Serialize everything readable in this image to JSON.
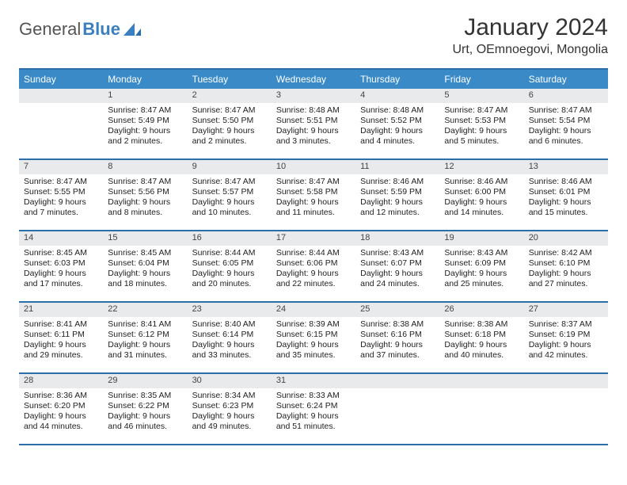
{
  "logo": {
    "part1": "General",
    "part2": "Blue"
  },
  "title": "January 2024",
  "location": "Urt, OEmnoegovi, Mongolia",
  "colors": {
    "header_bg": "#3a8ac7",
    "border": "#2c6fa8",
    "daynum_bg": "#e8eaec",
    "logo_gray": "#555555",
    "logo_blue": "#3a7fbf"
  },
  "weekdays": [
    "Sunday",
    "Monday",
    "Tuesday",
    "Wednesday",
    "Thursday",
    "Friday",
    "Saturday"
  ],
  "weeks": [
    [
      {
        "n": "",
        "sr": "",
        "ss": "",
        "dl": ""
      },
      {
        "n": "1",
        "sr": "Sunrise: 8:47 AM",
        "ss": "Sunset: 5:49 PM",
        "dl": "Daylight: 9 hours and 2 minutes."
      },
      {
        "n": "2",
        "sr": "Sunrise: 8:47 AM",
        "ss": "Sunset: 5:50 PM",
        "dl": "Daylight: 9 hours and 2 minutes."
      },
      {
        "n": "3",
        "sr": "Sunrise: 8:48 AM",
        "ss": "Sunset: 5:51 PM",
        "dl": "Daylight: 9 hours and 3 minutes."
      },
      {
        "n": "4",
        "sr": "Sunrise: 8:48 AM",
        "ss": "Sunset: 5:52 PM",
        "dl": "Daylight: 9 hours and 4 minutes."
      },
      {
        "n": "5",
        "sr": "Sunrise: 8:47 AM",
        "ss": "Sunset: 5:53 PM",
        "dl": "Daylight: 9 hours and 5 minutes."
      },
      {
        "n": "6",
        "sr": "Sunrise: 8:47 AM",
        "ss": "Sunset: 5:54 PM",
        "dl": "Daylight: 9 hours and 6 minutes."
      }
    ],
    [
      {
        "n": "7",
        "sr": "Sunrise: 8:47 AM",
        "ss": "Sunset: 5:55 PM",
        "dl": "Daylight: 9 hours and 7 minutes."
      },
      {
        "n": "8",
        "sr": "Sunrise: 8:47 AM",
        "ss": "Sunset: 5:56 PM",
        "dl": "Daylight: 9 hours and 8 minutes."
      },
      {
        "n": "9",
        "sr": "Sunrise: 8:47 AM",
        "ss": "Sunset: 5:57 PM",
        "dl": "Daylight: 9 hours and 10 minutes."
      },
      {
        "n": "10",
        "sr": "Sunrise: 8:47 AM",
        "ss": "Sunset: 5:58 PM",
        "dl": "Daylight: 9 hours and 11 minutes."
      },
      {
        "n": "11",
        "sr": "Sunrise: 8:46 AM",
        "ss": "Sunset: 5:59 PM",
        "dl": "Daylight: 9 hours and 12 minutes."
      },
      {
        "n": "12",
        "sr": "Sunrise: 8:46 AM",
        "ss": "Sunset: 6:00 PM",
        "dl": "Daylight: 9 hours and 14 minutes."
      },
      {
        "n": "13",
        "sr": "Sunrise: 8:46 AM",
        "ss": "Sunset: 6:01 PM",
        "dl": "Daylight: 9 hours and 15 minutes."
      }
    ],
    [
      {
        "n": "14",
        "sr": "Sunrise: 8:45 AM",
        "ss": "Sunset: 6:03 PM",
        "dl": "Daylight: 9 hours and 17 minutes."
      },
      {
        "n": "15",
        "sr": "Sunrise: 8:45 AM",
        "ss": "Sunset: 6:04 PM",
        "dl": "Daylight: 9 hours and 18 minutes."
      },
      {
        "n": "16",
        "sr": "Sunrise: 8:44 AM",
        "ss": "Sunset: 6:05 PM",
        "dl": "Daylight: 9 hours and 20 minutes."
      },
      {
        "n": "17",
        "sr": "Sunrise: 8:44 AM",
        "ss": "Sunset: 6:06 PM",
        "dl": "Daylight: 9 hours and 22 minutes."
      },
      {
        "n": "18",
        "sr": "Sunrise: 8:43 AM",
        "ss": "Sunset: 6:07 PM",
        "dl": "Daylight: 9 hours and 24 minutes."
      },
      {
        "n": "19",
        "sr": "Sunrise: 8:43 AM",
        "ss": "Sunset: 6:09 PM",
        "dl": "Daylight: 9 hours and 25 minutes."
      },
      {
        "n": "20",
        "sr": "Sunrise: 8:42 AM",
        "ss": "Sunset: 6:10 PM",
        "dl": "Daylight: 9 hours and 27 minutes."
      }
    ],
    [
      {
        "n": "21",
        "sr": "Sunrise: 8:41 AM",
        "ss": "Sunset: 6:11 PM",
        "dl": "Daylight: 9 hours and 29 minutes."
      },
      {
        "n": "22",
        "sr": "Sunrise: 8:41 AM",
        "ss": "Sunset: 6:12 PM",
        "dl": "Daylight: 9 hours and 31 minutes."
      },
      {
        "n": "23",
        "sr": "Sunrise: 8:40 AM",
        "ss": "Sunset: 6:14 PM",
        "dl": "Daylight: 9 hours and 33 minutes."
      },
      {
        "n": "24",
        "sr": "Sunrise: 8:39 AM",
        "ss": "Sunset: 6:15 PM",
        "dl": "Daylight: 9 hours and 35 minutes."
      },
      {
        "n": "25",
        "sr": "Sunrise: 8:38 AM",
        "ss": "Sunset: 6:16 PM",
        "dl": "Daylight: 9 hours and 37 minutes."
      },
      {
        "n": "26",
        "sr": "Sunrise: 8:38 AM",
        "ss": "Sunset: 6:18 PM",
        "dl": "Daylight: 9 hours and 40 minutes."
      },
      {
        "n": "27",
        "sr": "Sunrise: 8:37 AM",
        "ss": "Sunset: 6:19 PM",
        "dl": "Daylight: 9 hours and 42 minutes."
      }
    ],
    [
      {
        "n": "28",
        "sr": "Sunrise: 8:36 AM",
        "ss": "Sunset: 6:20 PM",
        "dl": "Daylight: 9 hours and 44 minutes."
      },
      {
        "n": "29",
        "sr": "Sunrise: 8:35 AM",
        "ss": "Sunset: 6:22 PM",
        "dl": "Daylight: 9 hours and 46 minutes."
      },
      {
        "n": "30",
        "sr": "Sunrise: 8:34 AM",
        "ss": "Sunset: 6:23 PM",
        "dl": "Daylight: 9 hours and 49 minutes."
      },
      {
        "n": "31",
        "sr": "Sunrise: 8:33 AM",
        "ss": "Sunset: 6:24 PM",
        "dl": "Daylight: 9 hours and 51 minutes."
      },
      {
        "n": "",
        "sr": "",
        "ss": "",
        "dl": ""
      },
      {
        "n": "",
        "sr": "",
        "ss": "",
        "dl": ""
      },
      {
        "n": "",
        "sr": "",
        "ss": "",
        "dl": ""
      }
    ]
  ]
}
